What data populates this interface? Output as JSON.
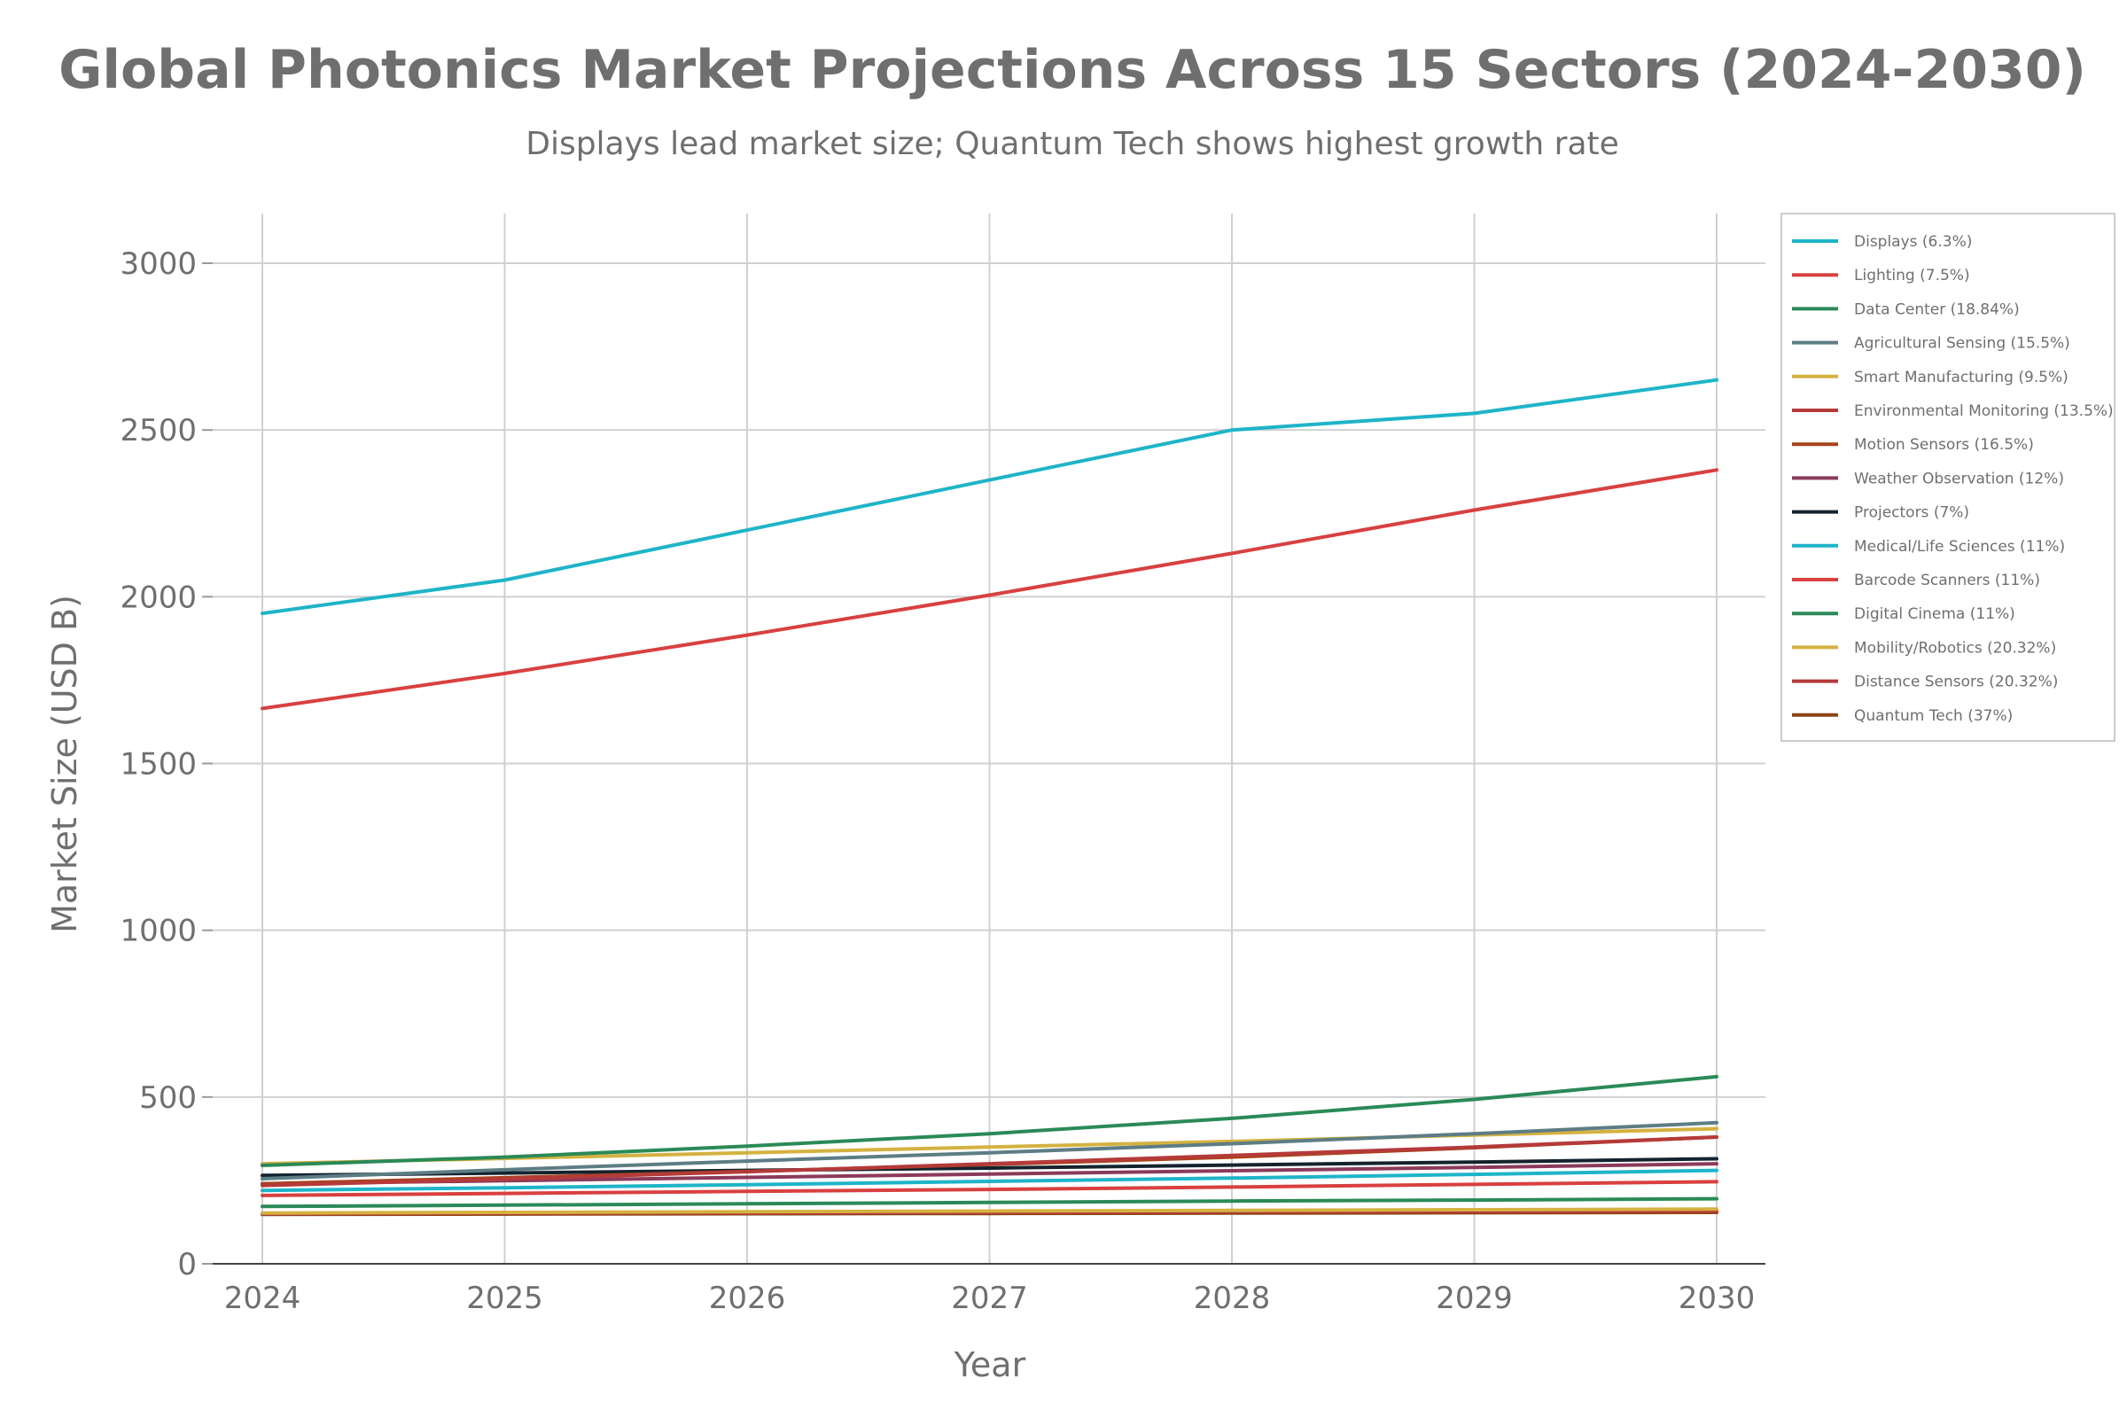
{
  "chart_data": {
    "type": "line",
    "title": "Global Photonics Market Projections Across 15 Sectors (2024-2030)",
    "subtitle": "Displays lead market size; Quantum Tech shows highest growth rate",
    "xlabel": "Year",
    "ylabel": "Market Size (USD B)",
    "x": [
      "2024",
      "2025",
      "2026",
      "2027",
      "2028",
      "2029",
      "2030"
    ],
    "ylim": [
      0,
      3150
    ],
    "yticks": [
      0,
      500,
      1000,
      1500,
      2000,
      2500,
      3000
    ],
    "grid": true,
    "legend_position": "top-right",
    "series": [
      {
        "name": "Displays (6.3%)",
        "color": "#1fb4c8",
        "values": [
          1950,
          2050,
          2200,
          2350,
          2500,
          2550,
          2650
        ]
      },
      {
        "name": "Lighting (7.5%)",
        "color": "#d94040",
        "values": [
          1665,
          1770,
          1885,
          2005,
          2130,
          2260,
          2380
        ]
      },
      {
        "name": "Data Center (18.84%)",
        "color": "#2a8a57",
        "values": [
          295,
          320,
          353,
          390,
          436,
          493,
          561
        ]
      },
      {
        "name": "Agricultural Sensing (15.5%)",
        "color": "#5d7d85",
        "values": [
          255,
          282,
          308,
          333,
          360,
          390,
          423
        ]
      },
      {
        "name": "Smart Manufacturing (9.5%)",
        "color": "#d4b240",
        "values": [
          300,
          316,
          333,
          350,
          367,
          386,
          405
        ]
      },
      {
        "name": "Environmental Monitoring (13.5%)",
        "color": "#b53a3a",
        "values": [
          235,
          254,
          276,
          300,
          325,
          350,
          380
        ]
      },
      {
        "name": "Motion Sensors (16.5%)",
        "color": "#a8421a",
        "values": [
          240,
          258,
          277,
          298,
          320,
          348,
          380
        ]
      },
      {
        "name": "Weather Observation (12%)",
        "color": "#8b3a5a",
        "values": [
          240,
          249,
          259,
          269,
          279,
          289,
          300
        ]
      },
      {
        "name": "Projectors (7%)",
        "color": "#14232e",
        "values": [
          265,
          272,
          280,
          287,
          296,
          305,
          315
        ]
      },
      {
        "name": "Medical/Life Sciences (11%)",
        "color": "#1fb4c8",
        "values": [
          220,
          228,
          237,
          247,
          257,
          268,
          280
        ]
      },
      {
        "name": "Barcode Scanners (11%)",
        "color": "#d94040",
        "values": [
          205,
          211,
          217,
          223,
          230,
          238,
          246
        ]
      },
      {
        "name": "Digital Cinema (11%)",
        "color": "#2a8a57",
        "values": [
          172,
          176,
          180,
          184,
          188,
          191,
          195
        ]
      },
      {
        "name": "Mobility/Robotics (20.32%)",
        "color": "#d4b240",
        "values": [
          152,
          154,
          156,
          158,
          160,
          162,
          164
        ]
      },
      {
        "name": "Distance Sensors (20.32%)",
        "color": "#b53a3a",
        "values": [
          150,
          152,
          153,
          154,
          156,
          157,
          158
        ]
      },
      {
        "name": "Quantum Tech (37%)",
        "color": "#8b4513",
        "values": [
          148,
          149,
          150,
          151,
          152,
          153,
          154
        ]
      }
    ]
  }
}
